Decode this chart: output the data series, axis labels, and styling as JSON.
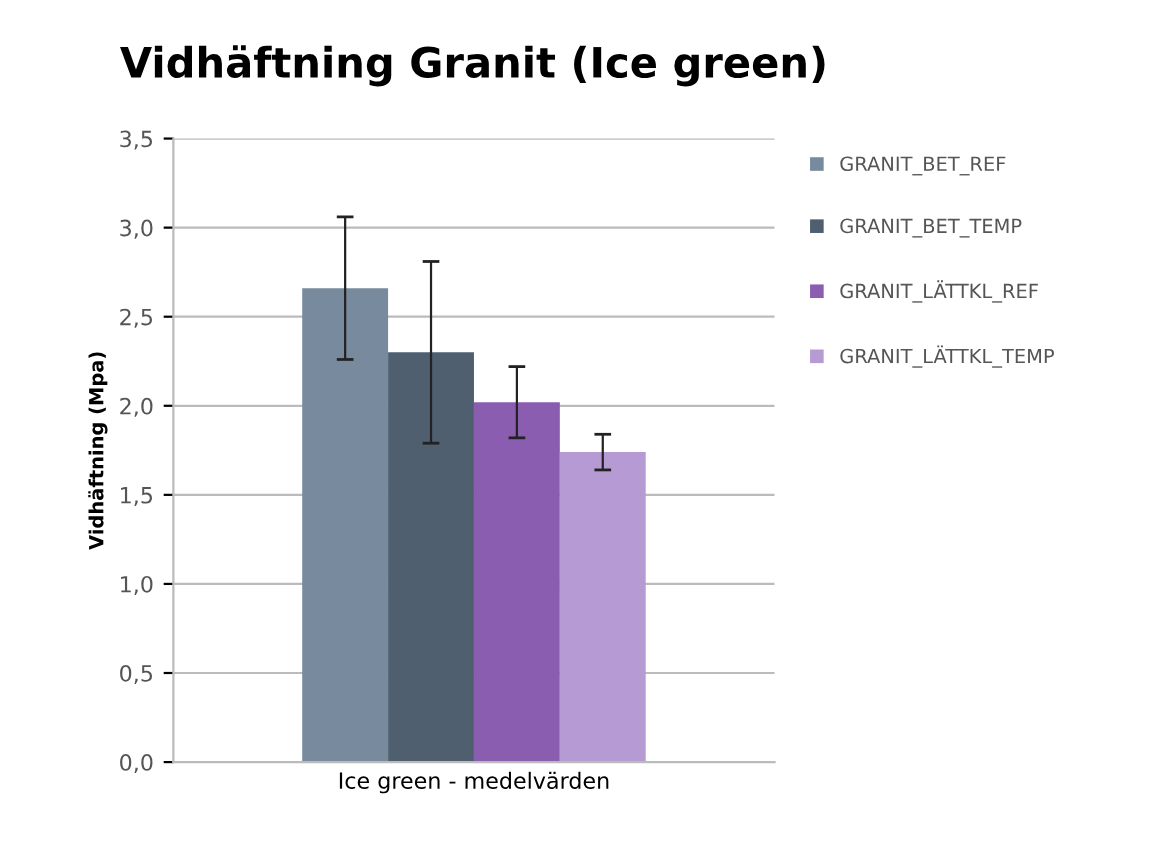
{
  "chart_data": {
    "type": "bar",
    "title": "Vidhäftning Granit (Ice green)",
    "ylabel": "Vidhäftning (Mpa)",
    "categories": [
      "Ice green - medelvärden"
    ],
    "series": [
      {
        "name": "GRANIT_BET_REF",
        "color": "#778a9e",
        "values": [
          2.66
        ],
        "errors": [
          0.4
        ]
      },
      {
        "name": "GRANIT_BET_TEMP",
        "color": "#4f5f70",
        "values": [
          2.3
        ],
        "errors": [
          0.51
        ]
      },
      {
        "name": "GRANIT_LÄTTKL_REF",
        "color": "#8b5db0",
        "values": [
          2.02
        ],
        "errors": [
          0.2
        ]
      },
      {
        "name": "GRANIT_LÄTTKL_TEMP",
        "color": "#b69ad4",
        "values": [
          1.74
        ],
        "errors": [
          0.1
        ]
      }
    ],
    "ylim": [
      0,
      3.5
    ],
    "yticks": [
      {
        "value": 0,
        "label": "0,0"
      },
      {
        "value": 0.5,
        "label": "0,5"
      },
      {
        "value": 1,
        "label": "1,0"
      },
      {
        "value": 1.5,
        "label": "1,5"
      },
      {
        "value": 2,
        "label": "2,0"
      },
      {
        "value": 2.5,
        "label": "2,5"
      },
      {
        "value": 3,
        "label": "3,0"
      },
      {
        "value": 3.5,
        "label": "3,5"
      }
    ],
    "grid": "y",
    "legend": "right"
  }
}
